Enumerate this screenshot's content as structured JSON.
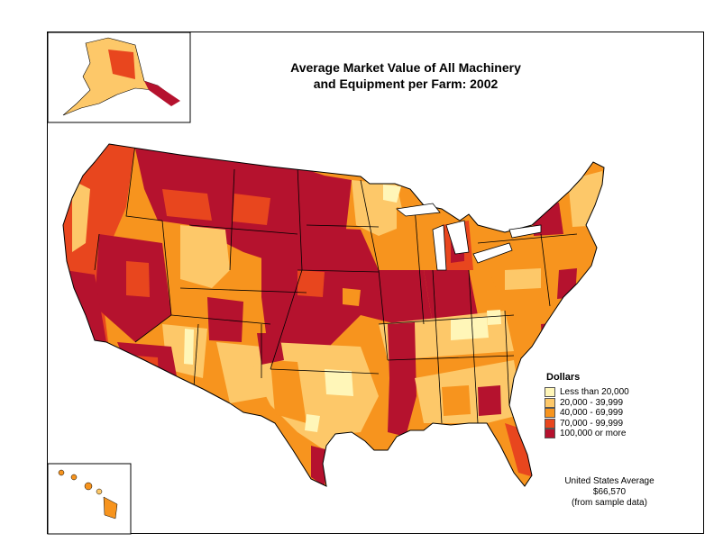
{
  "title": {
    "line1": "Average Market Value of All Machinery",
    "line2": "and Equipment per Farm:  2002"
  },
  "legend": {
    "title": "Dollars",
    "items": [
      {
        "label": "Less than 20,000",
        "color": "#FFF6B8"
      },
      {
        "label": "20,000 - 39,999",
        "color": "#FDC869"
      },
      {
        "label": "40,000 - 69,999",
        "color": "#F7941E"
      },
      {
        "label": "70,000 - 99,999",
        "color": "#E8461E"
      },
      {
        "label": "100,000 or more",
        "color": "#B5122E"
      }
    ]
  },
  "note": {
    "line1": "United States Average",
    "line2": "$66,570",
    "line3": "(from sample data)"
  },
  "colors": {
    "border": "#000000",
    "background": "#ffffff"
  }
}
